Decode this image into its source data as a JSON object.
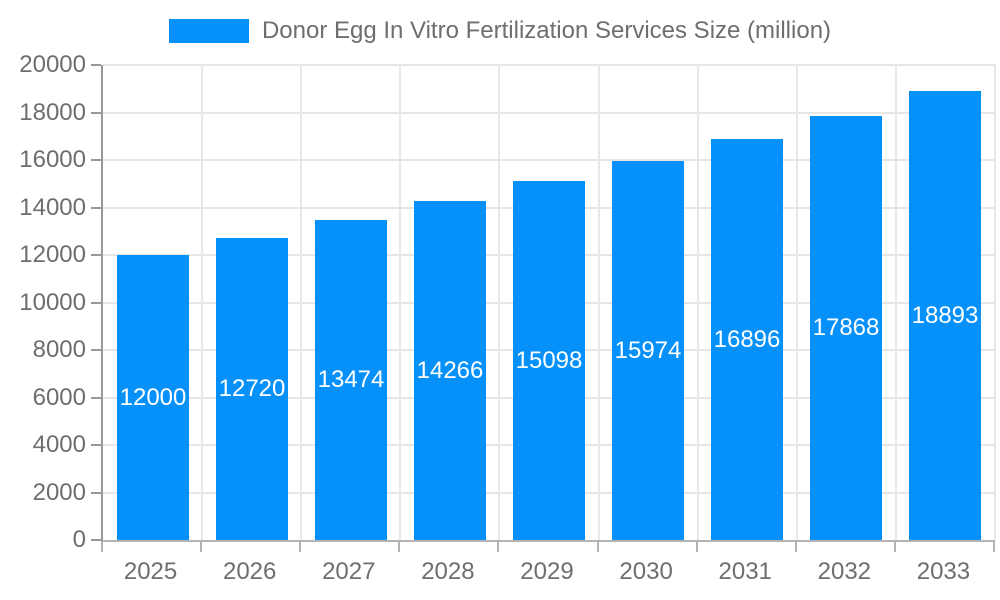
{
  "colors": {
    "bar": "#0691fa",
    "bar_label_text": "#ffffff",
    "axis_text": "#6e6e6e",
    "gridline": "#e6e6e6",
    "y_axis_line": "#999999",
    "x_axis_line": "#b3b3b3",
    "background": "#ffffff"
  },
  "chart_data": {
    "type": "bar",
    "title": "Donor Egg In Vitro Fertilization Services Size (million)",
    "categories": [
      "2025",
      "2026",
      "2027",
      "2028",
      "2029",
      "2030",
      "2031",
      "2032",
      "2033"
    ],
    "values": [
      12000,
      12720,
      13474,
      14266,
      15098,
      15974,
      16896,
      17868,
      18893
    ],
    "bar_value_labels": [
      "12000",
      "12720",
      "13474",
      "14266",
      "15098",
      "15974",
      "16896",
      "17868",
      "18893"
    ],
    "xlabel": "",
    "ylabel": "",
    "ylim": [
      0,
      20000
    ],
    "ytick_step": 2000,
    "yticks": [
      0,
      2000,
      4000,
      6000,
      8000,
      10000,
      12000,
      14000,
      16000,
      18000,
      20000
    ],
    "grid": true,
    "legend_position": "top",
    "legend_entries": [
      "Donor Egg In Vitro Fertilization Services Size (million)"
    ],
    "bar_labels_visible": true
  }
}
